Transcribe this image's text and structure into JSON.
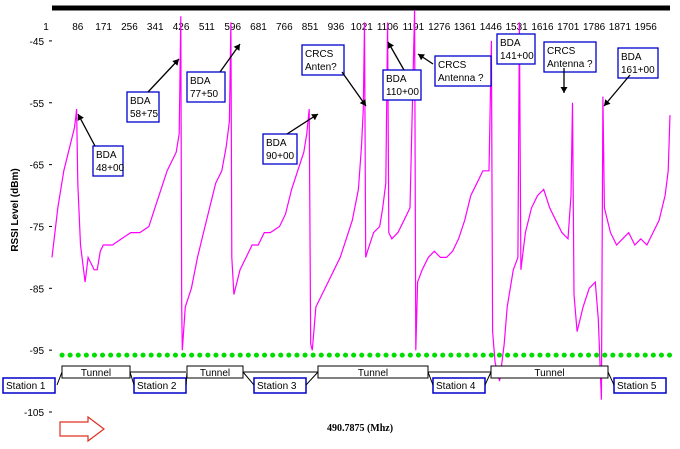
{
  "chart_data": {
    "type": "line",
    "title": "",
    "xlabel": "490.7875 (Mhz)",
    "ylabel": "RSSI Level (dBm)",
    "ylim": [
      -105,
      -40
    ],
    "xlim": [
      1,
      2036
    ],
    "y_ticks": [
      -45,
      -55,
      -65,
      -75,
      -85,
      -95,
      -105
    ],
    "x_ticks": [
      1,
      86,
      171,
      256,
      341,
      426,
      511,
      596,
      681,
      766,
      851,
      936,
      1021,
      1106,
      1191,
      1276,
      1361,
      1446,
      1531,
      1616,
      1701,
      1786,
      1871,
      1956
    ],
    "series_color": "#ff00ff",
    "threshold": {
      "value": -95,
      "color": "#00dd00"
    },
    "series": [
      {
        "values": [
          [
            1,
            -80
          ],
          [
            20,
            -72
          ],
          [
            40,
            -66
          ],
          [
            60,
            -62
          ],
          [
            75,
            -59
          ],
          [
            80,
            -57
          ],
          [
            82,
            -56
          ],
          [
            86,
            -68
          ],
          [
            95,
            -78
          ],
          [
            110,
            -84
          ],
          [
            120,
            -80
          ],
          [
            140,
            -82
          ],
          [
            150,
            -82
          ],
          [
            160,
            -79
          ],
          [
            170,
            -78
          ],
          [
            200,
            -78
          ],
          [
            230,
            -77
          ],
          [
            260,
            -76
          ],
          [
            290,
            -76
          ],
          [
            320,
            -75
          ],
          [
            340,
            -72
          ],
          [
            360,
            -69
          ],
          [
            380,
            -66
          ],
          [
            400,
            -64
          ],
          [
            410,
            -63
          ],
          [
            420,
            -60
          ],
          [
            425,
            -41
          ],
          [
            428,
            -88
          ],
          [
            430,
            -95
          ],
          [
            440,
            -88
          ],
          [
            460,
            -85
          ],
          [
            480,
            -80
          ],
          [
            500,
            -76
          ],
          [
            520,
            -72
          ],
          [
            540,
            -68
          ],
          [
            560,
            -66
          ],
          [
            575,
            -62
          ],
          [
            585,
            -58
          ],
          [
            590,
            -42
          ],
          [
            593,
            -80
          ],
          [
            600,
            -86
          ],
          [
            620,
            -82
          ],
          [
            640,
            -80
          ],
          [
            660,
            -78
          ],
          [
            680,
            -78
          ],
          [
            700,
            -76
          ],
          [
            720,
            -76
          ],
          [
            750,
            -75
          ],
          [
            770,
            -73
          ],
          [
            790,
            -69
          ],
          [
            810,
            -66
          ],
          [
            830,
            -63
          ],
          [
            840,
            -60
          ],
          [
            848,
            -56
          ],
          [
            853,
            -94
          ],
          [
            858,
            -95
          ],
          [
            870,
            -88
          ],
          [
            890,
            -86
          ],
          [
            910,
            -84
          ],
          [
            930,
            -82
          ],
          [
            950,
            -80
          ],
          [
            970,
            -77
          ],
          [
            990,
            -74
          ],
          [
            1010,
            -69
          ],
          [
            1020,
            -62
          ],
          [
            1026,
            -56
          ],
          [
            1030,
            -42
          ],
          [
            1034,
            -80
          ],
          [
            1040,
            -79
          ],
          [
            1060,
            -76
          ],
          [
            1080,
            -75
          ],
          [
            1090,
            -72
          ],
          [
            1100,
            -68
          ],
          [
            1106,
            -42
          ],
          [
            1110,
            -76
          ],
          [
            1120,
            -77
          ],
          [
            1140,
            -76
          ],
          [
            1160,
            -74
          ],
          [
            1180,
            -72
          ],
          [
            1195,
            -40
          ],
          [
            1199,
            -95
          ],
          [
            1205,
            -84
          ],
          [
            1220,
            -82
          ],
          [
            1240,
            -80
          ],
          [
            1260,
            -79
          ],
          [
            1280,
            -80
          ],
          [
            1300,
            -80
          ],
          [
            1320,
            -79
          ],
          [
            1340,
            -77
          ],
          [
            1360,
            -74
          ],
          [
            1380,
            -70
          ],
          [
            1400,
            -68
          ],
          [
            1420,
            -66
          ],
          [
            1440,
            -66
          ],
          [
            1448,
            -45
          ],
          [
            1452,
            -92
          ],
          [
            1460,
            -97
          ],
          [
            1475,
            -100
          ],
          [
            1490,
            -94
          ],
          [
            1500,
            -88
          ],
          [
            1520,
            -82
          ],
          [
            1535,
            -80
          ],
          [
            1540,
            -42
          ],
          [
            1545,
            -82
          ],
          [
            1560,
            -76
          ],
          [
            1580,
            -72
          ],
          [
            1600,
            -70
          ],
          [
            1620,
            -69
          ],
          [
            1640,
            -72
          ],
          [
            1660,
            -74
          ],
          [
            1680,
            -76
          ],
          [
            1700,
            -77
          ],
          [
            1710,
            -70
          ],
          [
            1715,
            -55
          ],
          [
            1720,
            -86
          ],
          [
            1730,
            -92
          ],
          [
            1750,
            -88
          ],
          [
            1770,
            -85
          ],
          [
            1790,
            -84
          ],
          [
            1800,
            -90
          ],
          [
            1810,
            -103
          ],
          [
            1815,
            -54
          ],
          [
            1820,
            -72
          ],
          [
            1840,
            -76
          ],
          [
            1860,
            -78
          ],
          [
            1880,
            -77
          ],
          [
            1900,
            -76
          ],
          [
            1920,
            -78
          ],
          [
            1940,
            -77
          ],
          [
            1960,
            -78
          ],
          [
            1980,
            -76
          ],
          [
            2000,
            -74
          ],
          [
            2010,
            -72
          ],
          [
            2020,
            -70
          ],
          [
            2030,
            -66
          ],
          [
            2036,
            -57
          ]
        ]
      }
    ],
    "annotations": [
      {
        "lines": [
          "BDA",
          "48+00"
        ]
      },
      {
        "lines": [
          "BDA",
          "58+75"
        ]
      },
      {
        "lines": [
          "BDA",
          "77+50"
        ]
      },
      {
        "lines": [
          "BDA",
          "90+00"
        ]
      },
      {
        "lines": [
          "CRCS",
          "Anten?"
        ]
      },
      {
        "lines": [
          "BDA",
          "110+00"
        ]
      },
      {
        "lines": [
          "CRCS",
          "Antenna ?"
        ]
      },
      {
        "lines": [
          "BDA",
          "141+00"
        ]
      },
      {
        "lines": [
          "CRCS",
          "Antenna ?"
        ]
      },
      {
        "lines": [
          "BDA",
          "161+00"
        ]
      }
    ],
    "stations": [
      "Station 1",
      "Station 2",
      "Station 3",
      "Station 4",
      "Station 5"
    ],
    "tunnels": [
      "Tunnel",
      "Tunnel",
      "Tunnel",
      "Tunnel"
    ]
  }
}
